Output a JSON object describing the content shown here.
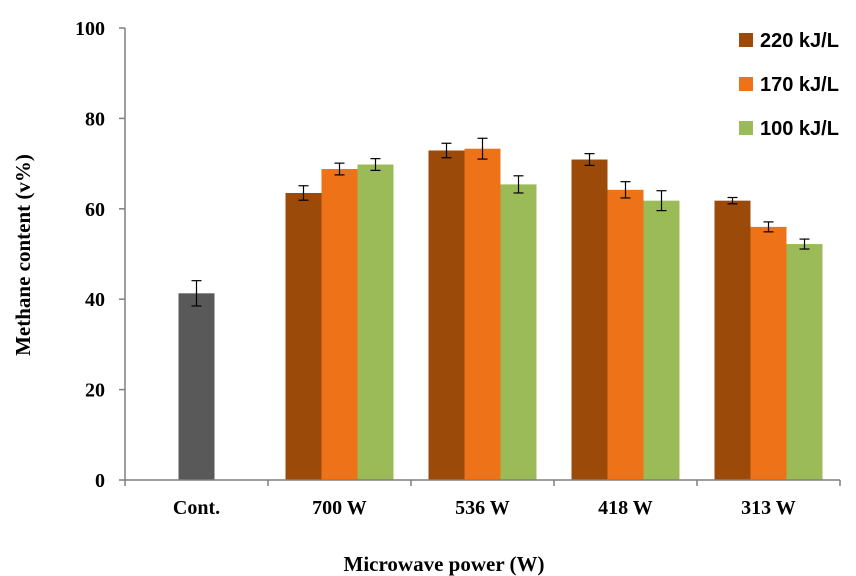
{
  "chart_data": {
    "type": "bar",
    "xlabel": "Microwave power (W)",
    "ylabel": "Methane content (v%)",
    "ylim": [
      0,
      100
    ],
    "yticks": [
      0,
      20,
      40,
      60,
      80,
      100
    ],
    "grid": false,
    "legend_position": "top-right",
    "categories": [
      "Cont.",
      "700 W",
      "536 W",
      "418 W",
      "313 W"
    ],
    "control": {
      "category": "Cont.",
      "value": 41.3,
      "error": 2.8,
      "color": "#595959"
    },
    "series": [
      {
        "name": "220 kJ/L",
        "color": "#9C4A0A",
        "values": [
          null,
          63.5,
          72.9,
          70.9,
          61.8
        ],
        "errors": [
          null,
          1.6,
          1.6,
          1.3,
          0.7
        ]
      },
      {
        "name": "170 kJ/L",
        "color": "#EE7218",
        "values": [
          null,
          68.8,
          73.3,
          64.2,
          56.0
        ],
        "errors": [
          null,
          1.3,
          2.3,
          1.8,
          1.1
        ]
      },
      {
        "name": "100 kJ/L",
        "color": "#9BBB59",
        "values": [
          null,
          69.8,
          65.4,
          61.8,
          52.2
        ],
        "errors": [
          null,
          1.3,
          1.9,
          2.2,
          1.1
        ]
      }
    ]
  }
}
